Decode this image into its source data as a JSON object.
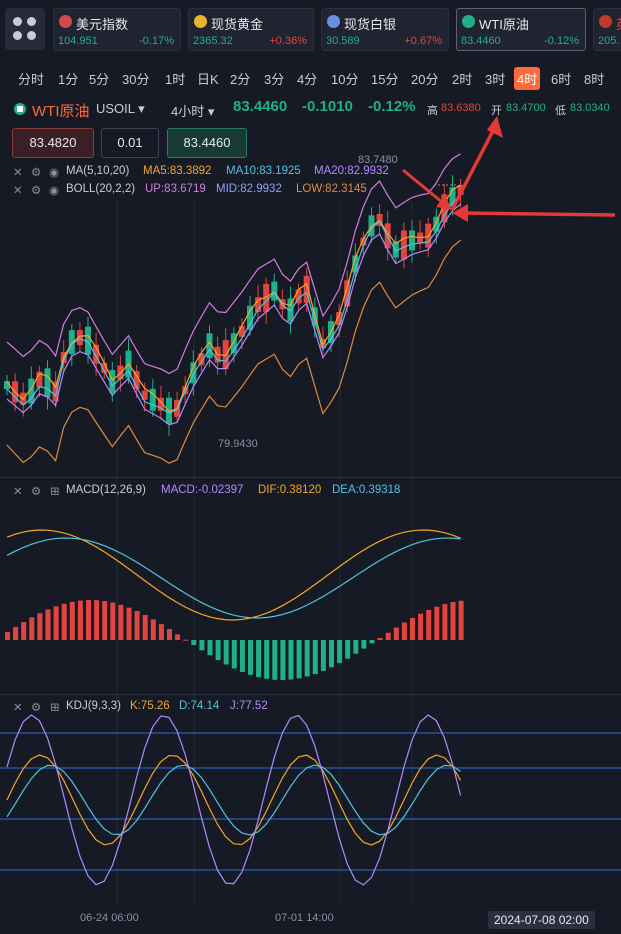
{
  "tickers": [
    {
      "name": "美元指数",
      "price": "104.951",
      "pct": "-0.17%",
      "dir": "dn",
      "icon_color": "#d34a4a",
      "icon": "us-flag-icon"
    },
    {
      "name": "现货黄金",
      "price": "2365.32",
      "pct": "+0.36%",
      "dir": "up",
      "icon_color": "#e8b52a",
      "icon": "gold-icon"
    },
    {
      "name": "现货白银",
      "price": "30.589",
      "pct": "+0.67%",
      "dir": "up",
      "icon_color": "#6a8fe0",
      "icon": "silver-icon"
    },
    {
      "name": "WTI原油",
      "price": "83.4460",
      "pct": "-0.12%",
      "dir": "dn",
      "icon_color": "#1fb08a",
      "icon": "oil-icon"
    },
    {
      "name": "英",
      "price": "205.",
      "pct": "",
      "dir": "dn",
      "icon_color": "#c0392b",
      "icon": "uk-flag-icon"
    }
  ],
  "tabs": [
    "分时",
    "1分",
    "5分",
    "30分",
    "1时",
    "日K",
    "2分",
    "3分",
    "4分",
    "10分",
    "15分",
    "20分",
    "2时",
    "3时",
    "4时",
    "6时",
    "8时"
  ],
  "selected_tab": "4时",
  "header": {
    "symbol": "WTI原油",
    "code": "USOIL ▾",
    "period": "4小时 ▾",
    "price": "83.4460",
    "change": "-0.1010",
    "pct": "-0.12%",
    "high_label": "高",
    "high": "83.6380",
    "open_label": "开",
    "open": "83.4700",
    "low_label": "低",
    "low": "83.0340"
  },
  "order": {
    "sell": "83.4820",
    "qty": "0.01",
    "buy": "83.4460"
  },
  "ma": {
    "name": "MA(5,10,20)",
    "ma5": "MA5:83.3892",
    "ma10": "MA10:83.1925",
    "ma20": "MA20:82.9932"
  },
  "boll": {
    "name": "BOLL(20,2,2)",
    "up": "UP:83.6719",
    "mid": "MID:82.9932",
    "low": "LOW:82.3145"
  },
  "annotations": {
    "peak": "83.7480",
    "trough": "79.9430"
  },
  "macd": {
    "name": "MACD(12,26,9)",
    "macd": "MACD:-0.02397",
    "dif": "DIF:0.38120",
    "dea": "DEA:0.39318"
  },
  "kdj": {
    "name": "KDJ(9,3,3)",
    "k": "K:75.26",
    "d": "D:74.14",
    "j": "J:77.52"
  },
  "time_axis": {
    "t1": "06-24 06:00",
    "t2": "07-01 14:00",
    "cursor": "2024-07-08 02:00"
  },
  "colors": {
    "up": "#e2453f",
    "down": "#1fb08a",
    "ma5": "#f5a623",
    "ma10": "#4fc3e0",
    "ma20": "#b388ff",
    "boll_up": "#d67be0",
    "boll_low": "#e08a3a",
    "arrow": "#e53935"
  }
}
